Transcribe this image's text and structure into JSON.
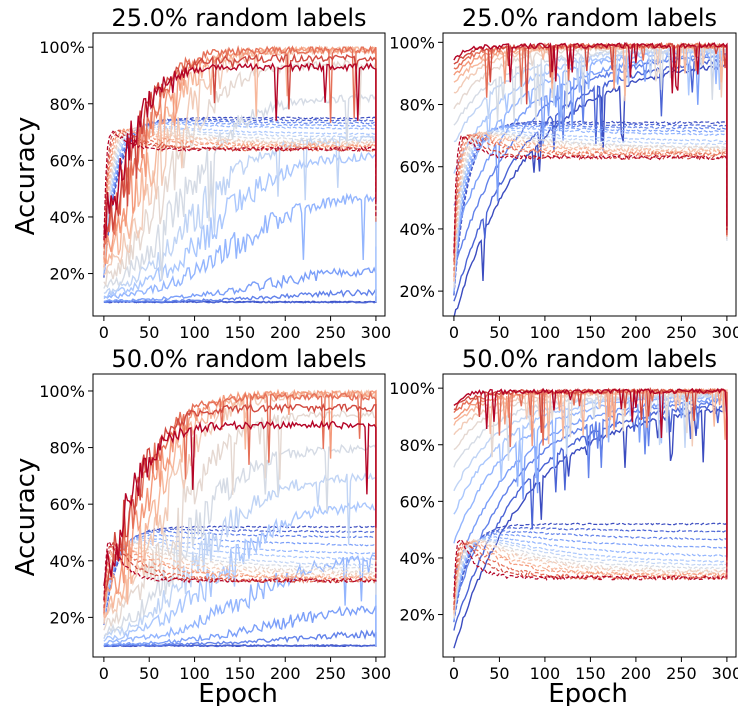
{
  "figure": {
    "ylabel": "Accuracy",
    "xlabel": "Epoch"
  },
  "chart_data": [
    {
      "type": "line",
      "title": "25.0% random labels",
      "xlim": [
        -12,
        310
      ],
      "ylim": [
        5,
        105
      ],
      "x_ticks": [
        0,
        50,
        100,
        150,
        200,
        250,
        300
      ],
      "y_ticks": [
        20,
        40,
        60,
        80,
        100
      ],
      "y_tick_labels": [
        "20%",
        "40%",
        "60%",
        "80%",
        "100%"
      ],
      "grid": false,
      "legend": "none",
      "train_final": [
        9.8,
        9.8,
        14,
        22,
        48,
        62,
        68,
        82,
        94,
        99,
        99,
        99,
        99,
        96,
        93
      ],
      "train_onset": [
        300,
        240,
        200,
        175,
        140,
        120,
        100,
        85,
        70,
        58,
        46,
        36,
        27,
        20,
        14
      ],
      "test_peak": [
        75,
        75,
        75,
        75,
        75,
        75,
        75,
        75,
        75,
        75,
        75,
        75,
        75,
        75,
        75
      ],
      "test_final": [
        75,
        74,
        73,
        72,
        71,
        69,
        68,
        67,
        66,
        66,
        65,
        65,
        64,
        64,
        64
      ],
      "test_final_drop": [
        40,
        38,
        41,
        42,
        44,
        46,
        45,
        43,
        38,
        36,
        35,
        37,
        40,
        39,
        37
      ]
    },
    {
      "type": "line",
      "title": "25.0% random labels",
      "xlim": [
        -12,
        310
      ],
      "ylim": [
        12,
        103
      ],
      "x_ticks": [
        0,
        50,
        100,
        150,
        200,
        250,
        300
      ],
      "y_ticks": [
        20,
        40,
        60,
        80,
        100
      ],
      "y_tick_labels": [
        "20%",
        "40%",
        "60%",
        "80%",
        "100%"
      ],
      "grid": false,
      "legend": "none",
      "train_start": [
        15,
        20,
        30,
        40,
        50,
        60,
        70,
        75,
        80,
        85,
        88,
        90,
        92,
        93,
        94
      ],
      "train_final": [
        95,
        96,
        97,
        97,
        98,
        98,
        98,
        98,
        99,
        99,
        99,
        99,
        99,
        99,
        99
      ],
      "test_final": [
        74,
        73,
        72,
        71,
        70,
        68,
        67,
        66,
        66,
        65,
        65,
        64,
        64,
        63,
        63
      ]
    },
    {
      "type": "line",
      "title": "50.0% random labels",
      "xlim": [
        -12,
        310
      ],
      "ylim": [
        6,
        106
      ],
      "x_ticks": [
        0,
        50,
        100,
        150,
        200,
        250,
        300
      ],
      "y_ticks": [
        20,
        40,
        60,
        80,
        100
      ],
      "y_tick_labels": [
        "20%",
        "40%",
        "60%",
        "80%",
        "100%"
      ],
      "grid": false,
      "legend": "none",
      "train_final": [
        10,
        10,
        15,
        24,
        42,
        60,
        70,
        80,
        92,
        99,
        99,
        99,
        98,
        94,
        88
      ],
      "train_onset": [
        300,
        250,
        210,
        180,
        150,
        125,
        105,
        90,
        75,
        62,
        50,
        40,
        30,
        22,
        16
      ],
      "test_peak": [
        52,
        52,
        52,
        52,
        52,
        52,
        52,
        52,
        52,
        52,
        52,
        52,
        52,
        52,
        52
      ],
      "test_final": [
        52,
        50,
        48,
        45,
        42,
        40,
        38,
        37,
        36,
        35,
        34,
        34,
        33,
        33,
        33
      ]
    },
    {
      "type": "line",
      "title": "50.0% random labels",
      "xlim": [
        -12,
        310
      ],
      "ylim": [
        5,
        105
      ],
      "x_ticks": [
        0,
        50,
        100,
        150,
        200,
        250,
        300
      ],
      "y_ticks": [
        20,
        40,
        60,
        80,
        100
      ],
      "y_tick_labels": [
        "20%",
        "40%",
        "60%",
        "80%",
        "100%"
      ],
      "grid": false,
      "legend": "none",
      "train_start": [
        12,
        18,
        26,
        36,
        48,
        58,
        66,
        74,
        80,
        85,
        88,
        90,
        92,
        93,
        94
      ],
      "train_final": [
        95,
        96,
        97,
        97,
        98,
        98,
        98,
        98,
        99,
        99,
        99,
        99,
        99,
        99,
        99
      ],
      "test_final": [
        52,
        49,
        46,
        43,
        40,
        38,
        37,
        36,
        35,
        35,
        34,
        34,
        33,
        33,
        33
      ]
    }
  ],
  "palette": [
    "#3b4cc0",
    "#4b64d5",
    "#6282ea",
    "#7b9ff9",
    "#93b5fe",
    "#aac7fd",
    "#c0d4f5",
    "#d5dbe5",
    "#e5d8d1",
    "#f2cbb7",
    "#f7b89c",
    "#f49a7b",
    "#e57058",
    "#d1493f",
    "#b40426"
  ]
}
